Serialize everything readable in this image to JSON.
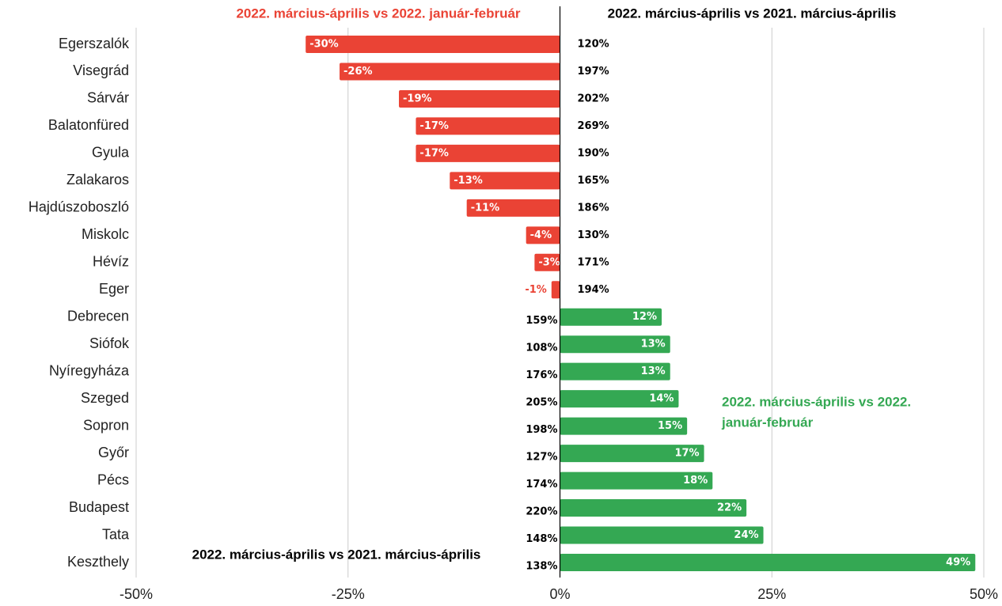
{
  "chart_data": {
    "type": "diverging-bar",
    "categories": [
      "Egerszalók",
      "Visegrád",
      "Sárvár",
      "Balatonfüred",
      "Gyula",
      "Zalakaros",
      "Hajdúszoboszló",
      "Miskolc",
      "Hévíz",
      "Eger",
      "Debrecen",
      "Siófok",
      "Nyíregyháza",
      "Szeged",
      "Sopron",
      "Győr",
      "Pécs",
      "Budapest",
      "Tata",
      "Keszthely"
    ],
    "series": [
      {
        "name": "2022. március-április vs 2022. január-február",
        "color": "#ea4335",
        "positive_color": "#34a853",
        "values": [
          -30,
          -26,
          -19,
          -17,
          -17,
          -13,
          -11,
          -4,
          -3,
          -1,
          12,
          13,
          13,
          14,
          15,
          17,
          18,
          22,
          24,
          49
        ],
        "value_labels": [
          "-30%",
          "-26%",
          "-19%",
          "-17%",
          "-17%",
          "-13%",
          "-11%",
          "-4%",
          "-3%",
          "-1%",
          "12%",
          "13%",
          "13%",
          "14%",
          "15%",
          "17%",
          "18%",
          "22%",
          "24%",
          "49%"
        ]
      },
      {
        "name": "2022. március-április vs 2021. március-április",
        "color": "#000000",
        "values": [
          120,
          197,
          202,
          269,
          190,
          165,
          186,
          130,
          171,
          194,
          159,
          108,
          176,
          205,
          198,
          127,
          174,
          220,
          148,
          138
        ],
        "value_labels": [
          "120%",
          "197%",
          "202%",
          "269%",
          "190%",
          "165%",
          "186%",
          "130%",
          "171%",
          "194%",
          "159%",
          "108%",
          "176%",
          "205%",
          "198%",
          "127%",
          "174%",
          "220%",
          "148%",
          "138%"
        ]
      }
    ],
    "annotations": [
      {
        "lines": [
          "2022. március-április vs 2022.",
          "január-február"
        ],
        "color": "#34a853"
      },
      {
        "lines": [
          "2022. március-április vs 2021. március-április"
        ],
        "color": "#000000"
      }
    ],
    "xlim": [
      -50,
      50
    ],
    "xticks": [
      {
        "value": -50,
        "label": "-50%"
      },
      {
        "value": -25,
        "label": "-25%"
      },
      {
        "value": 0,
        "label": "0%"
      },
      {
        "value": 25,
        "label": "25%"
      },
      {
        "value": 50,
        "label": "50%"
      }
    ],
    "grid": true
  }
}
